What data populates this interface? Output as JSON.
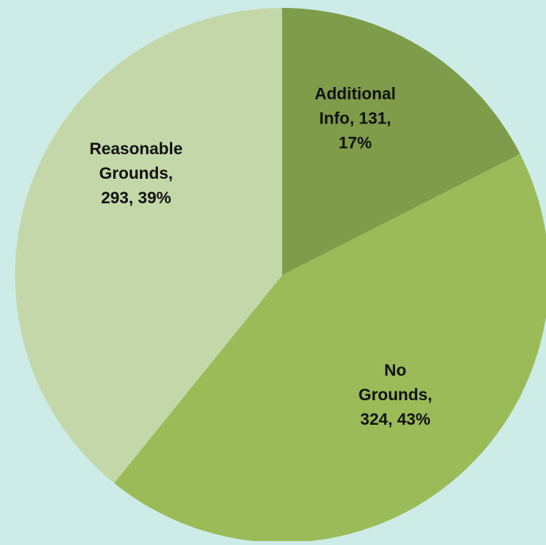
{
  "chart_data": {
    "type": "pie",
    "title": "",
    "slices": [
      {
        "label_lines": [
          "Additional",
          "Info, 131,",
          "17%"
        ],
        "value": 131,
        "percent": 17,
        "color": "#7f9c4a"
      },
      {
        "label_lines": [
          "No",
          "Grounds,",
          "324, 43%"
        ],
        "value": 324,
        "percent": 43,
        "color": "#9bbb59"
      },
      {
        "label_lines": [
          "Reasonable",
          "Grounds,",
          "293, 39%"
        ],
        "value": 293,
        "percent": 39,
        "color": "#c4d7a9"
      }
    ],
    "colors": {
      "background": "#cdece8"
    }
  }
}
